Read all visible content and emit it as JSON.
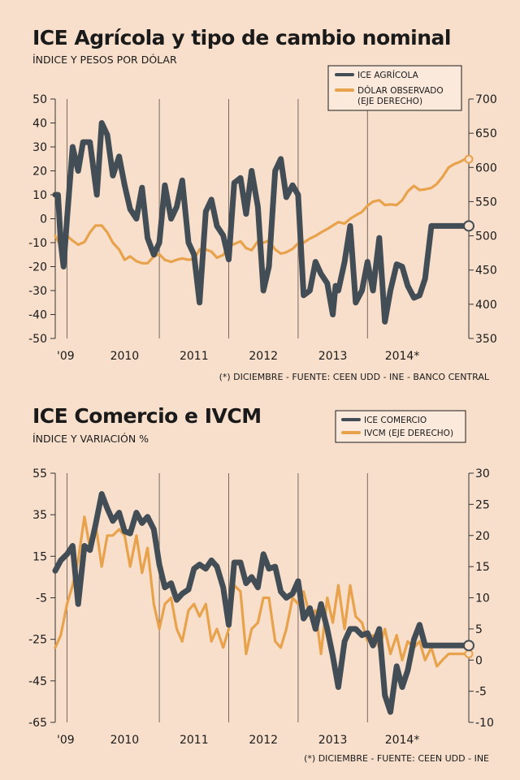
{
  "colors": {
    "background": "#f8dfcb",
    "dark_series": "#424d55",
    "orange_series": "#e8a24c",
    "gridline": "#7a6a60",
    "legend_box": "#fbe9dc"
  },
  "charts": [
    {
      "title": "ICE Agrícola y tipo de cambio nominal",
      "subtitle": "ÍNDICE Y PESOS POR DÓLAR",
      "source": "(*) DICIEMBRE - FUENTE: CEEN UDD - INE - BANCO CENTRAL",
      "legend": [
        "ICE AGRÍCOLA",
        "DÓLAR OBSERVADO",
        "(EJE DERECHO)"
      ],
      "x_tick_labels": [
        "'09",
        "2010",
        "2011",
        "2012",
        "2013",
        "2014*"
      ],
      "left_tick_labels": [
        "50",
        "40",
        "30",
        "20",
        "10",
        "0",
        "-10",
        "-20",
        "-30",
        "-40",
        "-50"
      ],
      "right_tick_labels": [
        "700",
        "650",
        "600",
        "550",
        "500",
        "450",
        "400",
        "350"
      ]
    },
    {
      "title": "ICE Comercio e IVCM",
      "subtitle": "ÍNDICE Y VARIACIÓN %",
      "source": "(*) DICIEMBRE - FUENTE: CEEN UDD - INE",
      "legend": [
        "ICE COMERCIO",
        "IVCM (EJE DERECHO)"
      ],
      "x_tick_labels": [
        "'09",
        "2010",
        "2011",
        "2012",
        "2013",
        "2014*"
      ],
      "left_tick_labels": [
        "55",
        "35",
        "15",
        "-5",
        "-25",
        "-45",
        "-65"
      ],
      "right_tick_labels": [
        "30",
        "25",
        "20",
        "15",
        "10",
        "5",
        "0",
        "-5",
        "-10"
      ]
    }
  ],
  "chart_data": [
    {
      "type": "line",
      "title": "ICE Agrícola y tipo de cambio nominal",
      "subtitle": "ÍNDICE Y PESOS POR DÓLAR",
      "x_range": [
        2009.0,
        2014.96
      ],
      "x_ticks": [
        2009.0,
        2010.0,
        2011.0,
        2012.0,
        2013.0,
        2014.0
      ],
      "left_axis": {
        "ylim": [
          -50,
          50
        ],
        "ticks": [
          50,
          40,
          30,
          20,
          10,
          0,
          -10,
          -20,
          -30,
          -40,
          -50
        ]
      },
      "right_axis": {
        "ylim": [
          350,
          700
        ],
        "ticks": [
          700,
          650,
          600,
          550,
          500,
          450,
          400,
          350
        ]
      },
      "vertical_gridlines": [
        2009.17,
        2010.5,
        2011.5,
        2012.5,
        2013.5
      ],
      "legend_position": "top-right",
      "series": [
        {
          "name": "ICE AGRÍCOLA",
          "axis": "left",
          "x": [
            2009.0,
            2009.04,
            2009.08,
            2009.12,
            2009.17,
            2009.25,
            2009.33,
            2009.4,
            2009.5,
            2009.6,
            2009.67,
            2009.75,
            2009.83,
            2009.92,
            2010.0,
            2010.08,
            2010.17,
            2010.25,
            2010.33,
            2010.42,
            2010.5,
            2010.58,
            2010.67,
            2010.75,
            2010.83,
            2010.92,
            2011.0,
            2011.04,
            2011.08,
            2011.17,
            2011.25,
            2011.33,
            2011.42,
            2011.5,
            2011.58,
            2011.67,
            2011.75,
            2011.83,
            2011.92,
            2012.0,
            2012.08,
            2012.17,
            2012.25,
            2012.33,
            2012.42,
            2012.5,
            2012.58,
            2012.67,
            2012.75,
            2012.83,
            2012.92,
            2013.0,
            2013.04,
            2013.08,
            2013.17,
            2013.25,
            2013.33,
            2013.42,
            2013.5,
            2013.58,
            2013.67,
            2013.75,
            2013.83,
            2013.92,
            2014.0,
            2014.08,
            2014.17,
            2014.25,
            2014.33,
            2014.42,
            2014.5,
            2014.58,
            2014.67,
            2014.75,
            2014.83,
            2014.92,
            2014.96
          ],
          "values": [
            10,
            10,
            -10,
            -20,
            0,
            30,
            20,
            32,
            32,
            10,
            40,
            35,
            18,
            26,
            14,
            4,
            0,
            13,
            -8,
            -15,
            -10,
            14,
            0,
            5,
            16,
            -10,
            -15,
            -25,
            -35,
            3,
            8,
            -3,
            -7,
            -17,
            15,
            17,
            2,
            20,
            5,
            -30,
            -20,
            20,
            25,
            9,
            14,
            10,
            -32,
            -30,
            -18,
            -23,
            -27,
            -40,
            -28,
            -30,
            -18,
            -3,
            -35,
            -30,
            -18,
            -30,
            -8,
            -43,
            -30,
            -19,
            -20,
            -28,
            -33,
            -32,
            -25,
            -3,
            -3,
            -3,
            -3,
            -3,
            -3,
            -3,
            -3
          ],
          "color": "#424d55"
        },
        {
          "name": "DÓLAR OBSERVADO (EJE DERECHO)",
          "axis": "right",
          "x": [
            2009.0,
            2009.08,
            2009.17,
            2009.25,
            2009.33,
            2009.42,
            2009.5,
            2009.58,
            2009.67,
            2009.75,
            2009.83,
            2009.92,
            2010.0,
            2010.08,
            2010.17,
            2010.25,
            2010.33,
            2010.42,
            2010.5,
            2010.58,
            2010.67,
            2010.75,
            2010.83,
            2010.92,
            2011.0,
            2011.08,
            2011.17,
            2011.25,
            2011.33,
            2011.42,
            2011.5,
            2011.58,
            2011.67,
            2011.75,
            2011.83,
            2011.92,
            2012.0,
            2012.08,
            2012.17,
            2012.25,
            2012.33,
            2012.42,
            2012.5,
            2012.58,
            2012.67,
            2012.75,
            2012.83,
            2012.92,
            2013.0,
            2013.08,
            2013.17,
            2013.25,
            2013.33,
            2013.42,
            2013.5,
            2013.58,
            2013.67,
            2013.75,
            2013.83,
            2013.92,
            2014.0,
            2014.08,
            2014.17,
            2014.25,
            2014.33,
            2014.42,
            2014.5,
            2014.58,
            2014.67,
            2014.75,
            2014.83,
            2014.92,
            2014.96
          ],
          "values": [
            500,
            485,
            500,
            493,
            487,
            491,
            505,
            515,
            515,
            505,
            490,
            480,
            465,
            470,
            463,
            460,
            460,
            470,
            473,
            465,
            462,
            465,
            467,
            465,
            466,
            480,
            480,
            477,
            468,
            472,
            485,
            488,
            492,
            482,
            479,
            492,
            490,
            493,
            480,
            474,
            476,
            481,
            489,
            490,
            496,
            500,
            505,
            510,
            515,
            520,
            518,
            525,
            530,
            535,
            544,
            550,
            552,
            545,
            546,
            545,
            552,
            565,
            573,
            567,
            568,
            570,
            576,
            586,
            600,
            605,
            608,
            613,
            612
          ],
          "color": "#e8a24c"
        }
      ]
    },
    {
      "type": "line",
      "title": "ICE Comercio e IVCM",
      "subtitle": "ÍNDICE Y VARIACIÓN %",
      "x_range": [
        2009.0,
        2014.96
      ],
      "x_ticks": [
        2009.0,
        2010.0,
        2011.0,
        2012.0,
        2013.0,
        2014.0
      ],
      "left_axis": {
        "ylim": [
          -65,
          55
        ],
        "ticks": [
          55,
          35,
          15,
          -5,
          -25,
          -45,
          -65
        ]
      },
      "right_axis": {
        "ylim": [
          -10,
          30
        ],
        "ticks": [
          30,
          25,
          20,
          15,
          10,
          5,
          0,
          -5,
          -10
        ]
      },
      "vertical_gridlines": [
        2009.17,
        2010.5,
        2011.5,
        2012.5,
        2013.5
      ],
      "legend_position": "top-right",
      "series": [
        {
          "name": "ICE COMERCIO",
          "axis": "left",
          "x": [
            2009.0,
            2009.08,
            2009.17,
            2009.25,
            2009.33,
            2009.42,
            2009.5,
            2009.58,
            2009.67,
            2009.75,
            2009.83,
            2009.92,
            2010.0,
            2010.08,
            2010.17,
            2010.25,
            2010.33,
            2010.42,
            2010.5,
            2010.58,
            2010.67,
            2010.75,
            2010.83,
            2010.92,
            2011.0,
            2011.08,
            2011.17,
            2011.25,
            2011.33,
            2011.42,
            2011.5,
            2011.58,
            2011.67,
            2011.75,
            2011.83,
            2011.92,
            2012.0,
            2012.08,
            2012.17,
            2012.25,
            2012.33,
            2012.42,
            2012.5,
            2012.58,
            2012.67,
            2012.75,
            2012.83,
            2012.92,
            2013.0,
            2013.08,
            2013.17,
            2013.25,
            2013.33,
            2013.42,
            2013.5,
            2013.58,
            2013.67,
            2013.75,
            2013.83,
            2013.92,
            2014.0,
            2014.08,
            2014.17,
            2014.25,
            2014.33,
            2014.42,
            2014.5,
            2014.58,
            2014.67,
            2014.75,
            2014.83,
            2014.92,
            2014.96
          ],
          "values": [
            8,
            13,
            16,
            20,
            -8,
            20,
            18,
            30,
            45,
            38,
            32,
            36,
            27,
            26,
            36,
            31,
            34,
            28,
            11,
            0,
            2,
            -6,
            -3,
            -1,
            9,
            11,
            9,
            13,
            10,
            0,
            -18,
            12,
            12,
            2,
            5,
            0,
            16,
            9,
            10,
            -2,
            -5,
            -3,
            3,
            -15,
            -10,
            -20,
            -8,
            -20,
            -33,
            -48,
            -26,
            -20,
            -20,
            -23,
            -22,
            -28,
            -20,
            -52,
            -60,
            -38,
            -48,
            -40,
            -25,
            -18,
            -28,
            -28,
            -28,
            -28,
            -28,
            -28,
            -28,
            -28,
            -28
          ],
          "color": "#424d55"
        },
        {
          "name": "IVCM (EJE DERECHO)",
          "axis": "right",
          "x": [
            2009.0,
            2009.08,
            2009.17,
            2009.25,
            2009.33,
            2009.42,
            2009.5,
            2009.58,
            2009.67,
            2009.75,
            2009.83,
            2009.92,
            2010.0,
            2010.08,
            2010.17,
            2010.25,
            2010.33,
            2010.42,
            2010.5,
            2010.58,
            2010.67,
            2010.75,
            2010.83,
            2010.92,
            2011.0,
            2011.08,
            2011.17,
            2011.25,
            2011.33,
            2011.42,
            2011.5,
            2011.58,
            2011.67,
            2011.75,
            2011.83,
            2011.92,
            2012.0,
            2012.08,
            2012.17,
            2012.25,
            2012.33,
            2012.42,
            2012.5,
            2012.58,
            2012.67,
            2012.75,
            2012.83,
            2012.92,
            2013.0,
            2013.08,
            2013.17,
            2013.25,
            2013.33,
            2013.42,
            2013.5,
            2013.58,
            2013.67,
            2013.75,
            2013.83,
            2013.92,
            2014.0,
            2014.08,
            2014.17,
            2014.25,
            2014.33,
            2014.42,
            2014.5,
            2014.58,
            2014.67,
            2014.75,
            2014.83,
            2014.92,
            2014.96
          ],
          "values": [
            2,
            4,
            9,
            12,
            16,
            23,
            18,
            22,
            15,
            20,
            20,
            21,
            20,
            15,
            20,
            14,
            18,
            9,
            5,
            9,
            10,
            5,
            3,
            8,
            9,
            7,
            9,
            3,
            5,
            2,
            5,
            12,
            11,
            1,
            5,
            6,
            10,
            10,
            3,
            2,
            5,
            10,
            9,
            11,
            7,
            8,
            1,
            10,
            6,
            12,
            5,
            12,
            7,
            6,
            3,
            4,
            2,
            5,
            1,
            4,
            0,
            3,
            2,
            3,
            0,
            2,
            -1,
            0,
            1,
            1,
            1,
            1,
            1
          ],
          "color": "#e8a24c"
        }
      ]
    }
  ]
}
